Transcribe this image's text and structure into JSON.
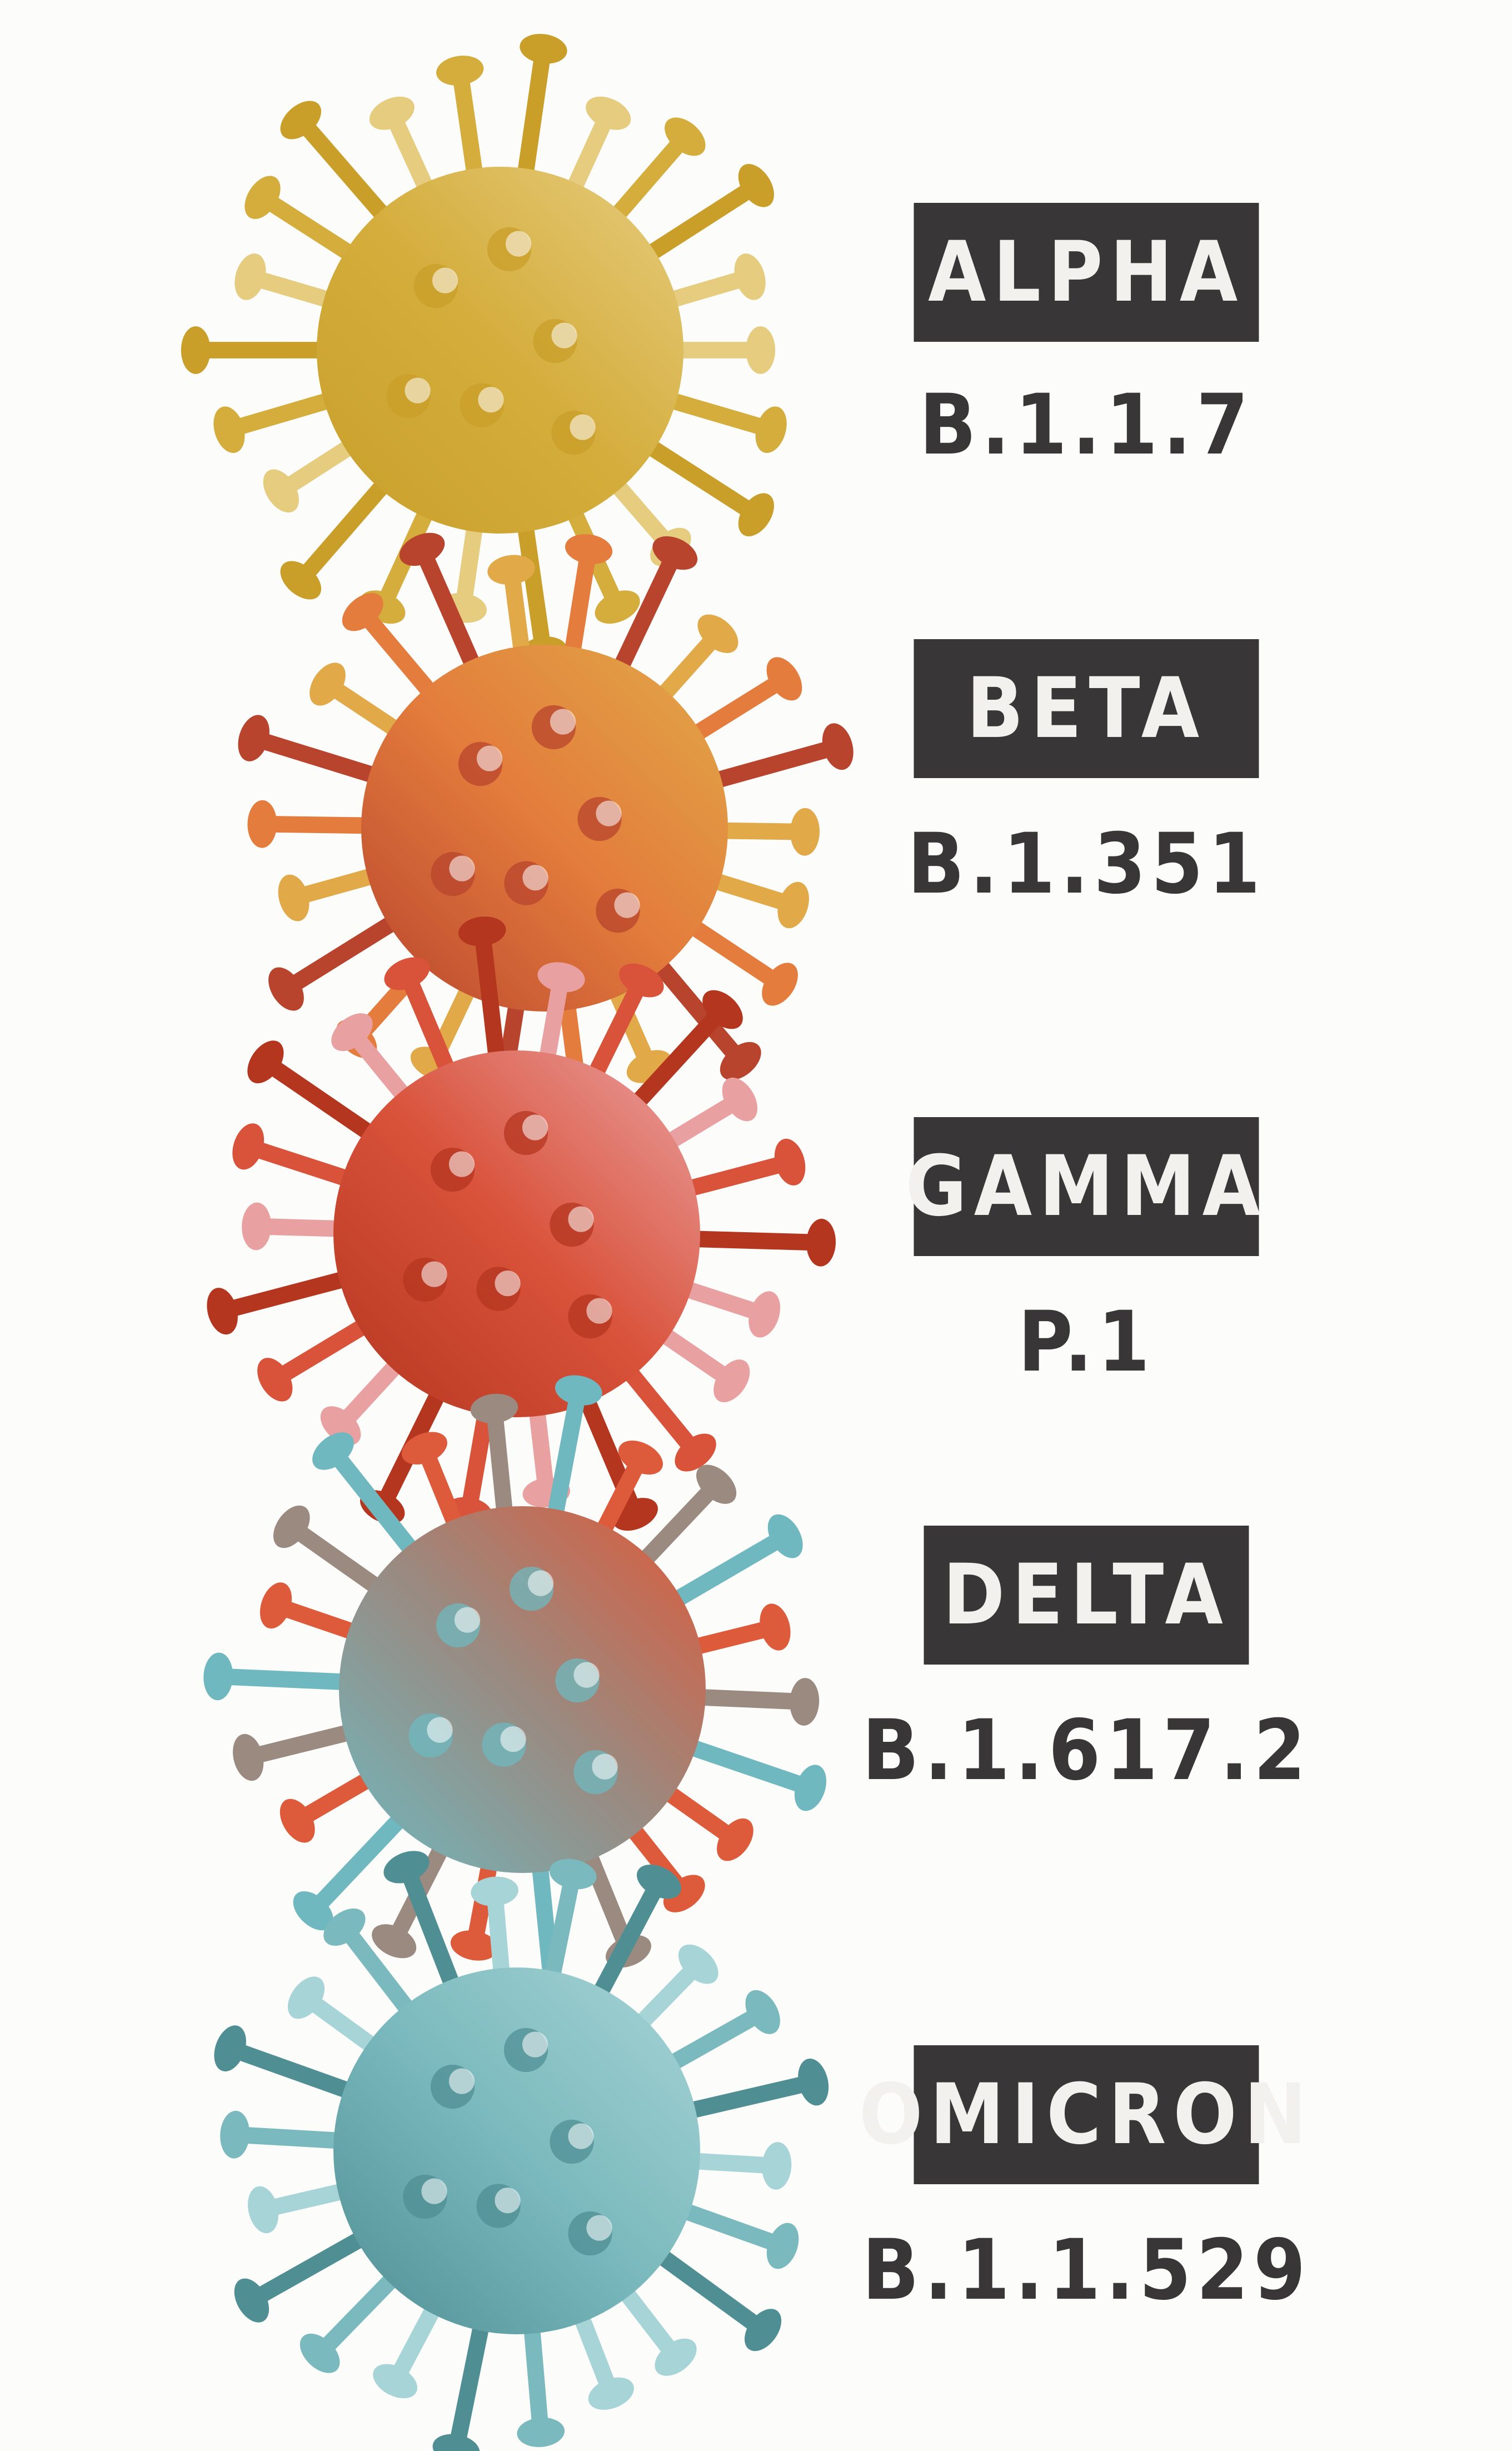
{
  "variants": [
    {
      "name": "ALPHA",
      "lineage": "B.1.1.7",
      "colors": [
        "#e6cc7e",
        "#d4ad3c",
        "#c99f2a"
      ]
    },
    {
      "name": "BETA",
      "lineage": "B.1.351",
      "colors": [
        "#e1a947",
        "#e37c3c",
        "#b8442e"
      ]
    },
    {
      "name": "GAMMA",
      "lineage": "P.1",
      "colors": [
        "#e9a0a0",
        "#d9523a",
        "#b4361f"
      ]
    },
    {
      "name": "DELTA",
      "lineage": "B.1.617.2",
      "colors": [
        "#dd5a3a",
        "#9a8a80",
        "#6fb8bf"
      ]
    },
    {
      "name": "OMICRON",
      "lineage": "B.1.1.529",
      "colors": [
        "#a7d4d6",
        "#7ab9bd",
        "#4f8f94"
      ]
    }
  ],
  "icon": "coronavirus-icon"
}
